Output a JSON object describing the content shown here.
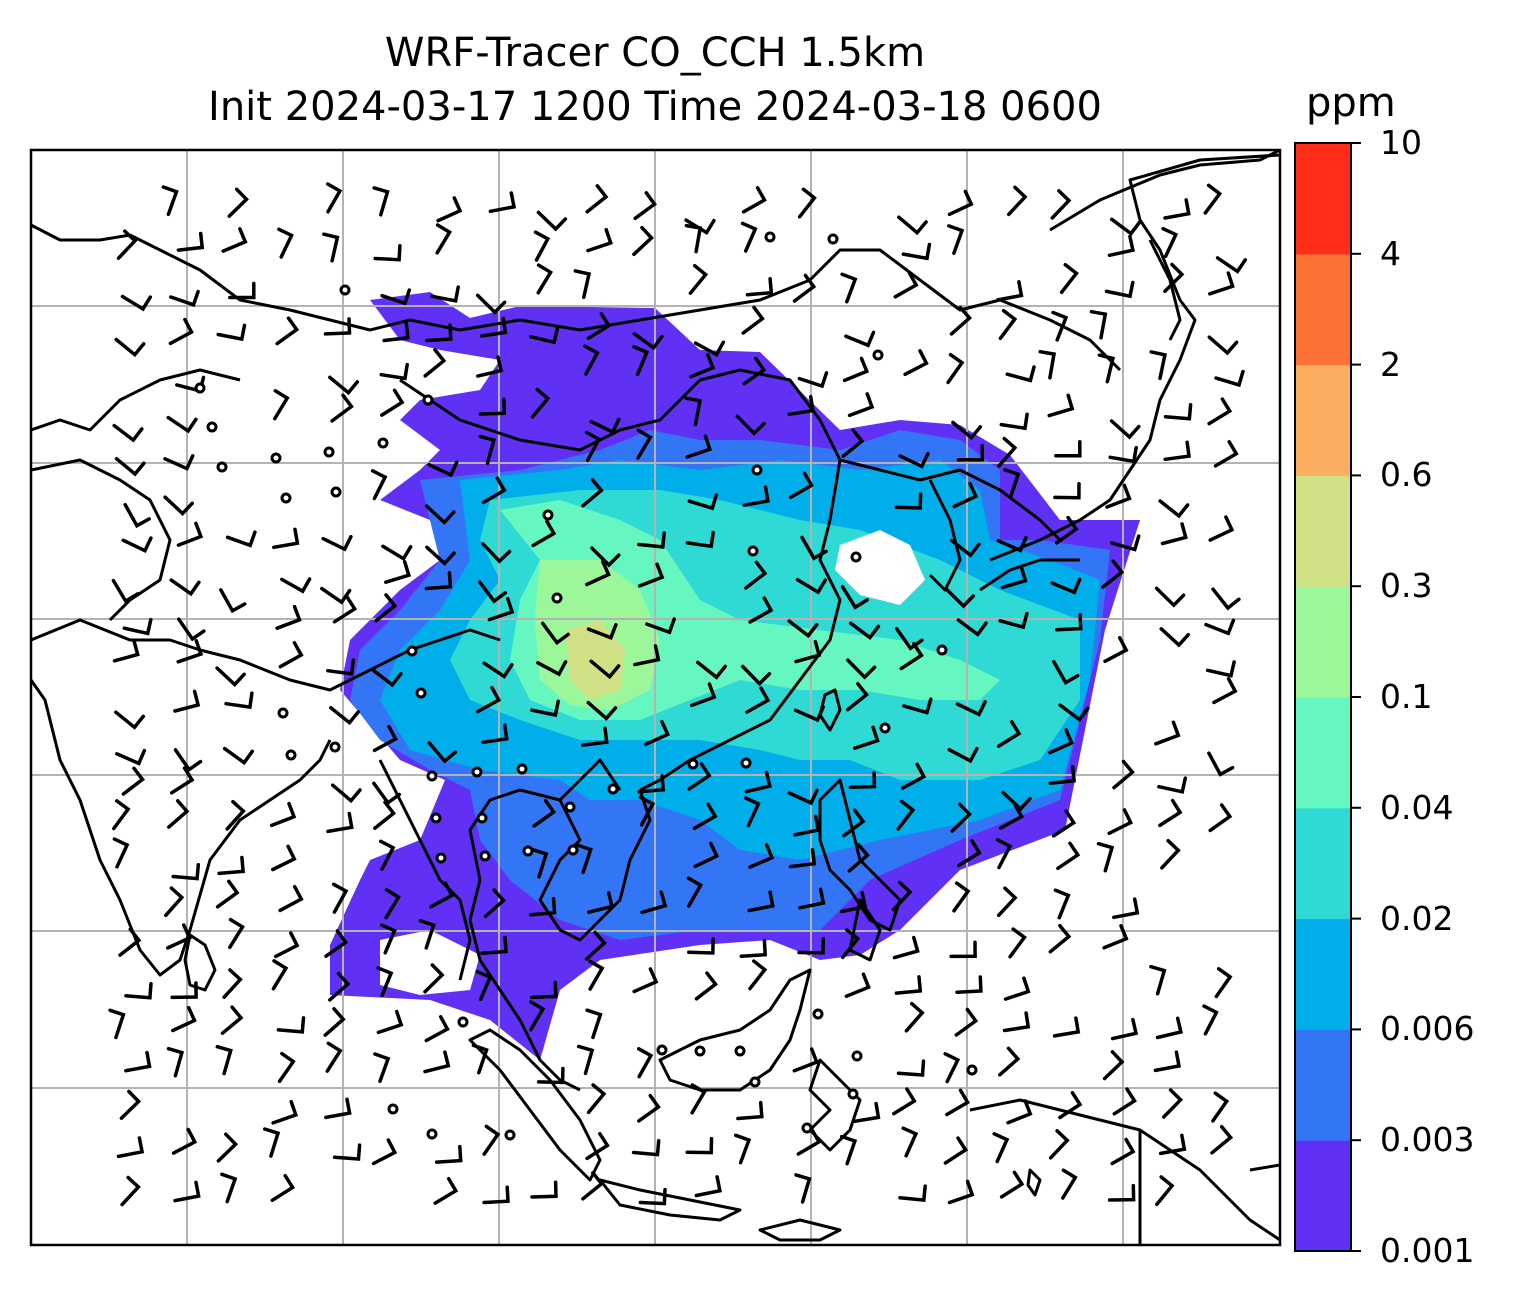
{
  "title": {
    "line1": "WRF-Tracer CO_CCH 1.5km",
    "line2": "Init 2024-03-17 1200 Time 2024-03-18 0600"
  },
  "colorbar": {
    "unit": "ppm",
    "levels": [
      "0.001",
      "0.003",
      "0.006",
      "0.02",
      "0.04",
      "0.1",
      "0.3",
      "0.6",
      "2",
      "4",
      "10"
    ],
    "colors": [
      "#6030f5",
      "#3376f5",
      "#00aeea",
      "#2fd9d4",
      "#66f7c0",
      "#9cf79a",
      "#d0e085",
      "#fcae60",
      "#fe7135",
      "#ff2d19"
    ]
  },
  "map": {
    "gridlines": true,
    "coastline_color": "#000000",
    "grid_color": "#b3b3b3",
    "wind_markers": "barbs",
    "calm_marker": "circle"
  }
}
